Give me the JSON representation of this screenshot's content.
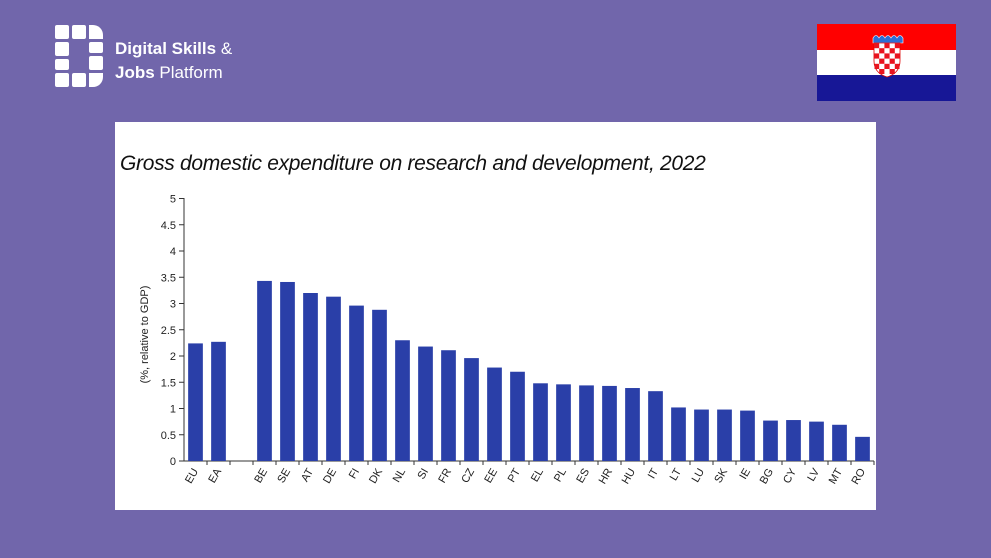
{
  "brand": {
    "line1_bold": "Digital Skills",
    "line1_rest": " &",
    "line2_bold": "Jobs",
    "line2_rest": " Platform",
    "colors": {
      "background": "#7166ab",
      "text": "#ffffff"
    }
  },
  "flag": {
    "country": "Croatia",
    "colors": {
      "red": "#ff0000",
      "white": "#ffffff",
      "blue": "#171796"
    }
  },
  "chart_data": {
    "type": "bar",
    "title": "Gross domestic expenditure on research and development, 2022",
    "ylabel": "(%, relative to GDP)",
    "xlabel": "",
    "ylim": [
      0,
      5.2
    ],
    "yticks": [
      "0",
      "0.5",
      "1",
      "1.5",
      "2",
      "2.5",
      "3",
      "3.5",
      "4",
      "4.5",
      "5"
    ],
    "bar_color": "#2a3fa8",
    "categories": [
      "EU",
      "EA",
      "",
      "BE",
      "SE",
      "AT",
      "DE",
      "FI",
      "DK",
      "NL",
      "SI",
      "FR",
      "CZ",
      "EE",
      "PT",
      "EL",
      "PL",
      "ES",
      "HR",
      "HU",
      "IT",
      "LT",
      "LU",
      "SK",
      "IE",
      "BG",
      "CY",
      "LV",
      "MT",
      "RO"
    ],
    "values": [
      2.24,
      2.27,
      null,
      3.43,
      3.41,
      3.2,
      3.13,
      2.96,
      2.88,
      2.3,
      2.18,
      2.11,
      1.96,
      1.78,
      1.7,
      1.48,
      1.46,
      1.44,
      1.43,
      1.39,
      1.33,
      1.02,
      0.98,
      0.98,
      0.96,
      0.77,
      0.78,
      0.75,
      0.69,
      0.46
    ]
  }
}
